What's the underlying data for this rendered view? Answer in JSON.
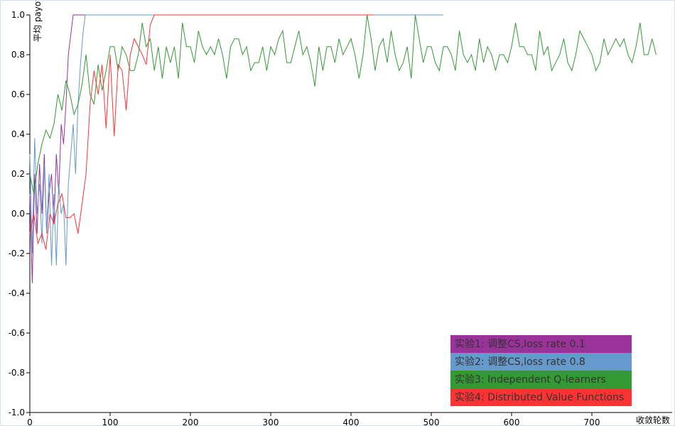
{
  "chart_data": {
    "type": "line",
    "y_label": "平均 payoff",
    "x_label": "收敛轮数",
    "xlim": [
      0,
      800
    ],
    "xticks": [
      0,
      100,
      200,
      300,
      400,
      500,
      600,
      700
    ],
    "ylim": [
      -1,
      1
    ],
    "yticks": [
      {
        "value": 1,
        "label": "1.0"
      },
      0.8,
      0.6,
      0.4,
      0.2,
      {
        "value": 0,
        "label": "0.0"
      },
      -0.2,
      -0.4,
      -0.6,
      -0.8,
      {
        "value": -1,
        "label": "-1.0"
      }
    ],
    "legend": "lower right",
    "series": [
      {
        "name": "实验1: 调整CS,loss rate 0.1",
        "color": "#993399",
        "x": [
          0,
          3,
          6,
          9,
          12,
          15,
          18,
          21,
          24,
          27,
          30,
          33,
          36,
          39,
          42,
          45,
          48,
          51,
          54,
          477
        ],
        "values": [
          0.1,
          -0.35,
          0.2,
          -0.1,
          0.25,
          0.0,
          0.3,
          -0.1,
          0.1,
          0.2,
          -0.05,
          0.3,
          0.1,
          0.45,
          0.35,
          0.55,
          0.8,
          0.9,
          1.0,
          1.0
        ]
      },
      {
        "name": "实验2: 调整CS,loss rate 0.8",
        "color": "#6699cc",
        "x": [
          0,
          3,
          6,
          9,
          12,
          15,
          18,
          21,
          24,
          27,
          30,
          33,
          36,
          39,
          42,
          45,
          48,
          51,
          54,
          57,
          60,
          63,
          66,
          69,
          515
        ],
        "values": [
          0.3,
          -0.2,
          0.38,
          0.0,
          0.15,
          -0.15,
          0.25,
          -0.1,
          0.2,
          -0.26,
          0.1,
          -0.26,
          0.15,
          0.0,
          0.05,
          -0.26,
          0.15,
          0.3,
          0.45,
          0.2,
          0.55,
          0.75,
          0.9,
          1.0,
          1.0
        ]
      },
      {
        "name": "实验3: Independent Q-learners",
        "color": "#339933",
        "x": [
          0,
          5,
          10,
          15,
          20,
          25,
          30,
          35,
          40,
          45,
          50,
          55,
          60,
          65,
          70,
          75,
          80,
          85,
          90,
          95,
          100,
          105,
          110,
          115,
          120,
          125,
          130,
          135,
          140,
          145,
          150,
          155,
          160,
          165,
          170,
          175,
          180,
          185,
          190,
          195,
          200,
          205,
          210,
          215,
          220,
          225,
          230,
          235,
          240,
          245,
          250,
          255,
          260,
          265,
          270,
          275,
          280,
          285,
          290,
          295,
          300,
          305,
          310,
          315,
          320,
          325,
          330,
          335,
          340,
          345,
          350,
          355,
          360,
          365,
          370,
          375,
          380,
          385,
          390,
          395,
          400,
          405,
          410,
          415,
          420,
          425,
          430,
          435,
          440,
          445,
          450,
          455,
          460,
          465,
          470,
          475,
          480,
          485,
          490,
          495,
          500,
          505,
          510,
          515,
          520,
          525,
          530,
          535,
          540,
          545,
          550,
          555,
          560,
          565,
          570,
          575,
          580,
          585,
          590,
          595,
          600,
          605,
          610,
          615,
          620,
          625,
          630,
          635,
          640,
          645,
          650,
          655,
          660,
          665,
          670,
          675,
          680,
          685,
          690,
          695,
          700,
          705,
          710,
          715,
          720,
          725,
          730,
          735,
          740,
          745,
          750,
          755,
          760,
          765,
          770,
          775,
          780
        ],
        "values": [
          0.2,
          0.1,
          0.25,
          0.35,
          0.42,
          0.38,
          0.45,
          0.6,
          0.52,
          0.67,
          0.6,
          0.5,
          0.55,
          0.65,
          0.8,
          0.6,
          0.55,
          0.75,
          0.62,
          0.72,
          0.84,
          0.84,
          0.72,
          0.84,
          0.8,
          0.72,
          0.72,
          0.8,
          0.96,
          0.84,
          0.88,
          0.72,
          0.84,
          0.68,
          0.84,
          0.76,
          0.84,
          0.68,
          0.96,
          0.84,
          0.84,
          0.76,
          0.92,
          0.84,
          0.8,
          0.84,
          0.8,
          0.88,
          0.8,
          0.68,
          0.84,
          0.88,
          0.88,
          0.8,
          0.84,
          0.72,
          0.76,
          0.76,
          0.84,
          0.72,
          0.84,
          0.8,
          0.88,
          0.92,
          0.76,
          0.76,
          0.84,
          0.92,
          0.8,
          0.84,
          0.76,
          0.64,
          0.84,
          0.72,
          0.84,
          0.84,
          0.76,
          0.88,
          0.8,
          0.84,
          0.88,
          0.8,
          0.68,
          0.8,
          1.0,
          0.88,
          0.72,
          0.84,
          0.88,
          0.76,
          0.92,
          0.8,
          0.72,
          0.76,
          0.84,
          0.68,
          1.0,
          0.88,
          0.76,
          0.84,
          0.84,
          0.76,
          0.72,
          0.84,
          0.84,
          0.8,
          0.72,
          0.92,
          0.8,
          0.76,
          0.8,
          0.72,
          0.88,
          0.76,
          0.84,
          0.8,
          0.72,
          0.8,
          0.8,
          0.76,
          0.84,
          0.96,
          0.84,
          0.84,
          0.8,
          0.8,
          0.72,
          0.92,
          0.8,
          0.84,
          0.72,
          0.76,
          0.8,
          0.88,
          0.76,
          0.72,
          0.8,
          0.92,
          0.88,
          0.84,
          0.8,
          0.72,
          0.76,
          0.88,
          0.8,
          0.84,
          0.88,
          0.84,
          0.88,
          0.8,
          0.76,
          0.84,
          0.96,
          0.8,
          0.8,
          0.88,
          0.8
        ]
      },
      {
        "name": "实验4: Distributed Value Functions",
        "color": "#ff3333",
        "x": [
          0,
          5,
          10,
          15,
          20,
          25,
          30,
          35,
          40,
          45,
          50,
          55,
          60,
          65,
          70,
          75,
          80,
          85,
          90,
          95,
          100,
          105,
          110,
          115,
          120,
          125,
          130,
          135,
          140,
          145,
          150,
          155,
          160,
          428
        ],
        "values": [
          -0.1,
          0.0,
          -0.15,
          -0.1,
          -0.18,
          0.0,
          -0.05,
          0.05,
          0.1,
          -0.02,
          -0.02,
          0.0,
          -0.1,
          0.05,
          0.2,
          0.55,
          0.72,
          0.6,
          0.75,
          0.43,
          0.8,
          0.39,
          0.75,
          0.72,
          0.52,
          0.8,
          0.88,
          0.84,
          0.8,
          0.75,
          0.95,
          1.0,
          1.0,
          1.0
        ]
      }
    ]
  }
}
